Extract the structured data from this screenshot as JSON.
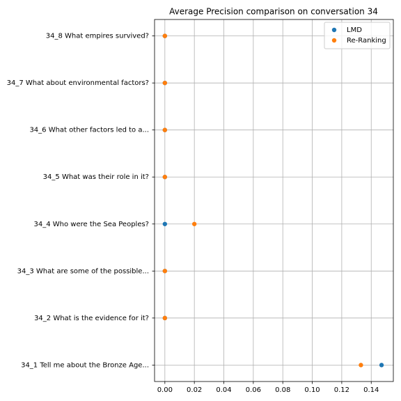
{
  "chart_data": {
    "type": "scatter",
    "title": "Average Precision comparison on conversation 34",
    "categories": [
      "34_1 Tell me about the Bronze Age...",
      "34_2 What is the evidence for it?",
      "34_3 What are some of the possible...",
      "34_4 Who were the Sea Peoples?",
      "34_5 What was their role in it?",
      "34_6 What other factors led to a...",
      "34_7 What about environmental factors?",
      "34_8 What empires survived?"
    ],
    "series": [
      {
        "name": "LMD",
        "color": "#1f77b4",
        "values": [
          0.147,
          0,
          0,
          0,
          0,
          0,
          0,
          0
        ]
      },
      {
        "name": "Re-Ranking",
        "color": "#ff7f0e",
        "values": [
          0.133,
          0,
          0,
          0.02,
          0,
          0,
          0,
          0
        ]
      }
    ],
    "xlim": [
      -0.007,
      0.155
    ],
    "xticks": [
      {
        "value": 0,
        "label": "0.00"
      },
      {
        "value": 0.02,
        "label": "0.02"
      },
      {
        "value": 0.04,
        "label": "0.04"
      },
      {
        "value": 0.06,
        "label": "0.06"
      },
      {
        "value": 0.08,
        "label": "0.08"
      },
      {
        "value": 0.1,
        "label": "0.10"
      },
      {
        "value": 0.12,
        "label": "0.12"
      },
      {
        "value": 0.14,
        "label": "0.14"
      }
    ],
    "grid": true,
    "legend": "upper right"
  }
}
